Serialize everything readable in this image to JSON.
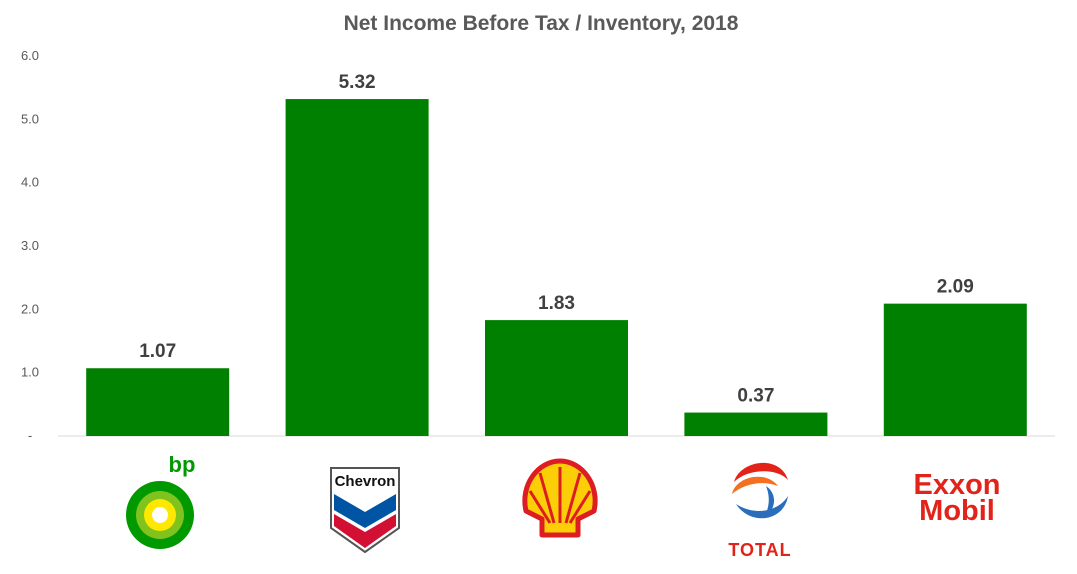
{
  "chart_data": {
    "type": "bar",
    "title": "Net Income Before Tax / Inventory, 2018",
    "categories": [
      "BP",
      "Chevron",
      "Shell",
      "Total",
      "ExxonMobil"
    ],
    "values": [
      1.07,
      5.32,
      1.83,
      0.37,
      2.09
    ],
    "data_labels": [
      "1.07",
      "5.32",
      "1.83",
      "0.37",
      "2.09"
    ],
    "yticks": [
      {
        "value": 0,
        "label": "-"
      },
      {
        "value": 1,
        "label": "1.0"
      },
      {
        "value": 2,
        "label": "2.0"
      },
      {
        "value": 3,
        "label": "3.0"
      },
      {
        "value": 4,
        "label": "4.0"
      },
      {
        "value": 5,
        "label": "5.0"
      },
      {
        "value": 6,
        "label": "6.0"
      }
    ],
    "ylim": [
      0,
      6
    ],
    "xlabel": "",
    "ylabel": "",
    "grid": false,
    "legend": "none",
    "bar_color": "#008000"
  },
  "logos": [
    {
      "name": "bp-logo",
      "text": "bp",
      "color": "#009900"
    },
    {
      "name": "chevron-logo",
      "text": "Chevron",
      "colors": [
        "#0054a4",
        "#d21034"
      ]
    },
    {
      "name": "shell-logo",
      "text": "",
      "colors": [
        "#fbce07",
        "#dd1d21"
      ]
    },
    {
      "name": "total-logo",
      "text": "TOTAL",
      "colors": [
        "#e2231a",
        "#f37021",
        "#2a6ebb"
      ]
    },
    {
      "name": "exxonmobil-logo",
      "text_top": "Exxon",
      "text_bottom": "Mobil",
      "color": "#e2231a"
    }
  ]
}
